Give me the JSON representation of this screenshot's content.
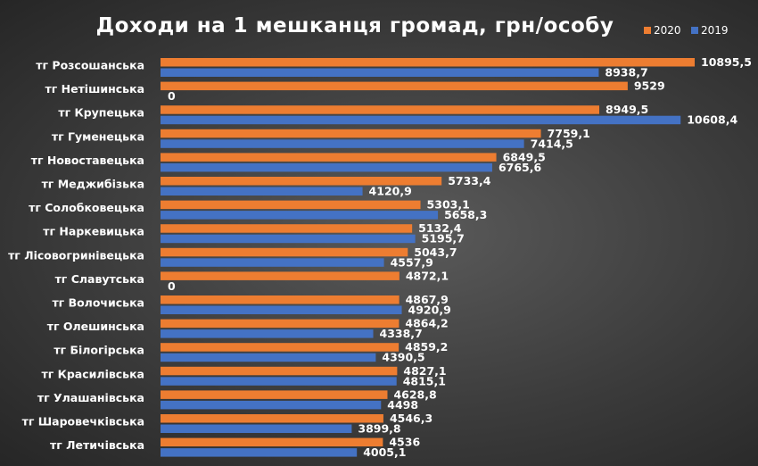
{
  "chart_data": {
    "type": "bar",
    "orientation": "horizontal",
    "title": "Доходи на 1 мешканця громад, грн/особу",
    "legend_position": "top-right",
    "xlim": [
      0,
      11000
    ],
    "grid": false,
    "categories": [
      "тг Розсошанська",
      "тг Нетішинська",
      "тг Крупецька",
      "тг Гуменецька",
      "тг Новоставецька",
      "тг Меджибізька",
      "тг Солобковецька",
      "тг Наркевицька",
      "тг Лісовогринівецька",
      "тг Славутська",
      "тг Волочиська",
      "тг Олешинська",
      "тг Білогірська",
      "тг Красилівська",
      "тг Улашанівська",
      "тг Шаровечківська",
      "тг Летичівська"
    ],
    "series": [
      {
        "name": "2020",
        "color": "#ED7D31",
        "values": [
          10895.5,
          9529,
          8949.5,
          7759.1,
          6849.5,
          5733.4,
          5303.1,
          5132.4,
          5043.7,
          4872.1,
          4867.9,
          4864.2,
          4859.2,
          4827.1,
          4628.8,
          4546.3,
          4536
        ],
        "labels": [
          "10895,5",
          "9529",
          "8949,5",
          "7759,1",
          "6849,5",
          "5733,4",
          "5303,1",
          "5132,4",
          "5043,7",
          "4872,1",
          "4867,9",
          "4864,2",
          "4859,2",
          "4827,1",
          "4628,8",
          "4546,3",
          "4536"
        ]
      },
      {
        "name": "2019",
        "color": "#4472C4",
        "values": [
          8938.7,
          0,
          10608.4,
          7414.5,
          6765.6,
          4120.9,
          5658.3,
          5195.7,
          4557.9,
          0,
          4920.9,
          4338.7,
          4390.5,
          4815.1,
          4498,
          3899.8,
          4005.1
        ],
        "labels": [
          "8938,7",
          "0",
          "10608,4",
          "7414,5",
          "6765,6",
          "4120,9",
          "5658,3",
          "5195,7",
          "4557,9",
          "0",
          "4920,9",
          "4338,7",
          "4390,5",
          "4815,1",
          "4498",
          "3899,8",
          "4005,1"
        ]
      }
    ]
  }
}
